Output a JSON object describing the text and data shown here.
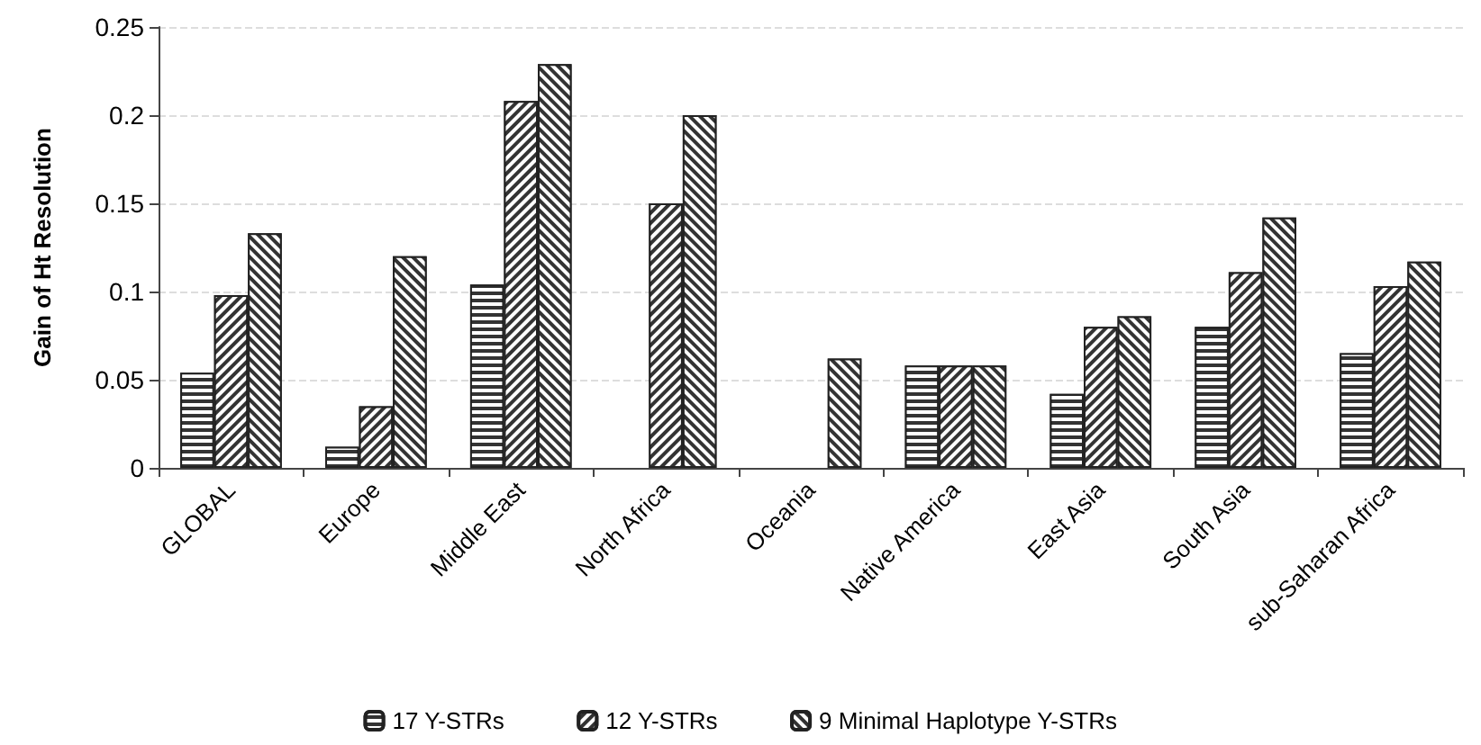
{
  "chart_data": {
    "type": "bar",
    "ylabel": "Gain of Ht Resolution",
    "categories": [
      "GLOBAL",
      "Europe",
      "Middle East",
      "North Africa",
      "Oceania",
      "Native America",
      "East Asia",
      "South Asia",
      "sub-Saharan Africa"
    ],
    "series": [
      {
        "name": "17 Y-STRs",
        "color": "#333333",
        "values": [
          0.054,
          0.012,
          0.104,
          null,
          null,
          0.058,
          0.042,
          0.08,
          0.065
        ]
      },
      {
        "name": "12 Y-STRs",
        "color": "#333333",
        "values": [
          0.098,
          0.035,
          0.208,
          0.15,
          null,
          0.058,
          0.08,
          0.111,
          0.103
        ]
      },
      {
        "name": "9 Minimal Haplotype Y-STRs",
        "color": "#333333",
        "values": [
          0.133,
          0.12,
          0.229,
          0.2,
          0.062,
          0.058,
          0.086,
          0.142,
          0.117
        ]
      }
    ],
    "ylim": [
      0,
      0.25
    ],
    "yticks": [
      0,
      0.05,
      0.1,
      0.15,
      0.2,
      0.25
    ],
    "grid": "y",
    "legend": "bottom"
  }
}
